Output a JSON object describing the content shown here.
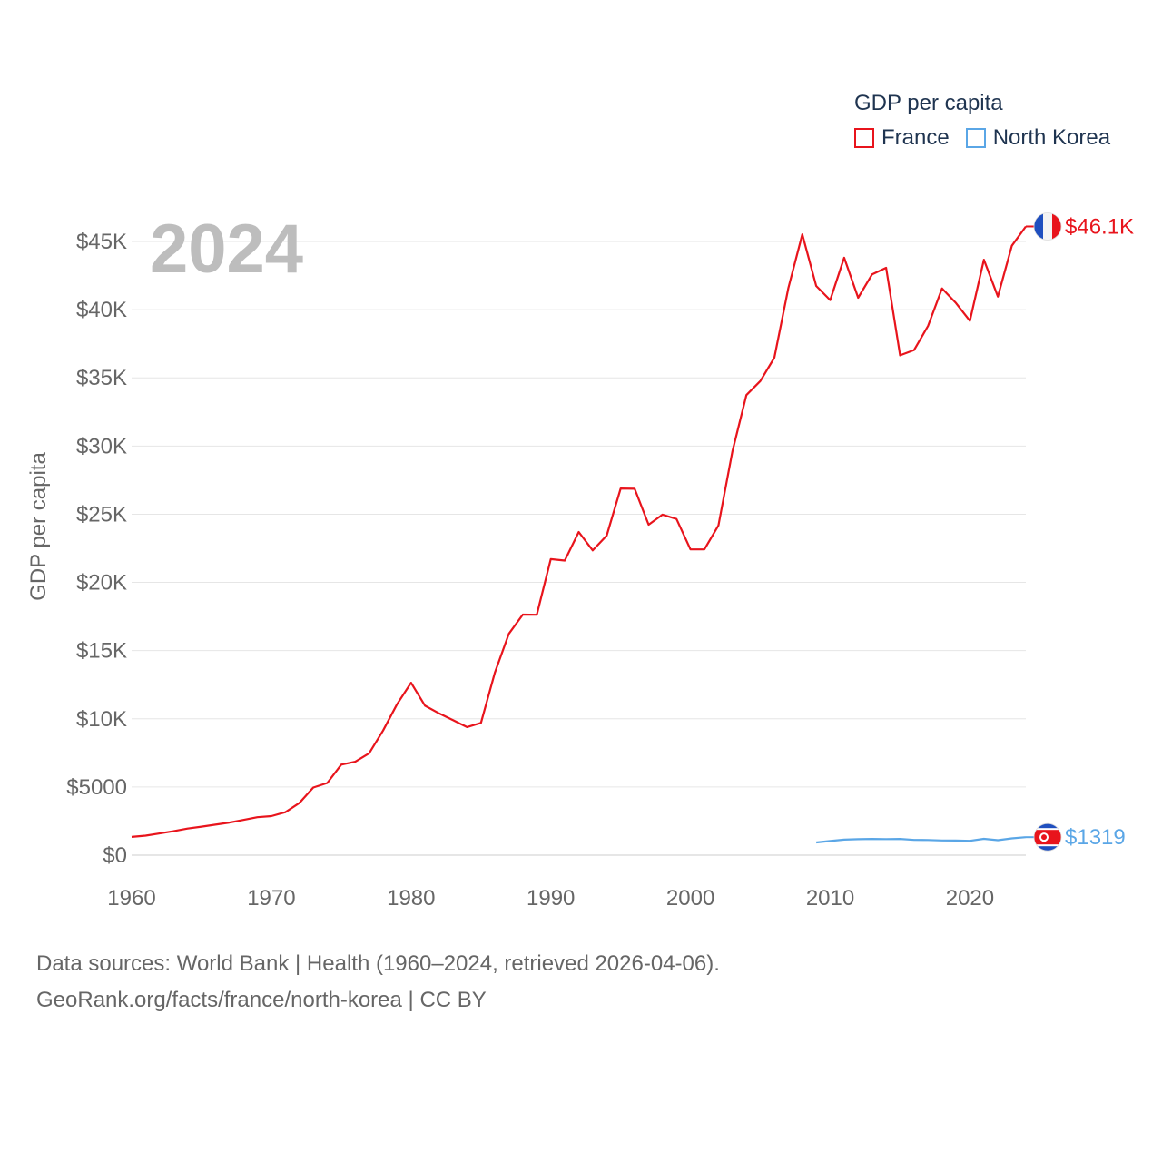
{
  "legend": {
    "title": "GDP per capita",
    "items": [
      {
        "name": "France",
        "color": "#e8141c"
      },
      {
        "name": "North Korea",
        "color": "#5aa6e6"
      }
    ]
  },
  "year_label": "2024",
  "sources": {
    "line1": "Data sources: World Bank | Health (1960–2024, retrieved 2026-04-06).",
    "line2": "GeoRank.org/facts/france/north-korea | CC BY"
  },
  "chart_data": {
    "type": "line",
    "title": "GDP per capita",
    "xlabel": "",
    "ylabel": "GDP per capita",
    "xlim": [
      1960,
      2024
    ],
    "ylim": [
      0,
      45000
    ],
    "x_ticks": [
      1960,
      1970,
      1980,
      1990,
      2000,
      2010,
      2020
    ],
    "y_ticks": [
      {
        "value": 0,
        "label": "$0"
      },
      {
        "value": 5000,
        "label": "$5000"
      },
      {
        "value": 10000,
        "label": "$10K"
      },
      {
        "value": 15000,
        "label": "$15K"
      },
      {
        "value": 20000,
        "label": "$20K"
      },
      {
        "value": 25000,
        "label": "$25K"
      },
      {
        "value": 30000,
        "label": "$30K"
      },
      {
        "value": 35000,
        "label": "$35K"
      },
      {
        "value": 40000,
        "label": "$40K"
      },
      {
        "value": 45000,
        "label": "$45K"
      }
    ],
    "grid": true,
    "legend_position": "top-right",
    "series": [
      {
        "name": "France",
        "color": "#e8141c",
        "end_label": "$46.1K",
        "flag": "france-flag-icon",
        "x": [
          1960,
          1961,
          1962,
          1963,
          1964,
          1965,
          1966,
          1967,
          1968,
          1969,
          1970,
          1971,
          1972,
          1973,
          1974,
          1975,
          1976,
          1977,
          1978,
          1979,
          1980,
          1981,
          1982,
          1983,
          1984,
          1985,
          1986,
          1987,
          1988,
          1989,
          1990,
          1991,
          1992,
          1993,
          1994,
          1995,
          1996,
          1997,
          1998,
          1999,
          2000,
          2001,
          2002,
          2003,
          2004,
          2005,
          2006,
          2007,
          2008,
          2009,
          2010,
          2011,
          2012,
          2013,
          2014,
          2015,
          2016,
          2017,
          2018,
          2019,
          2020,
          2021,
          2022,
          2023,
          2024
        ],
        "values": [
          1340,
          1430,
          1590,
          1760,
          1950,
          2090,
          2240,
          2390,
          2580,
          2780,
          2860,
          3150,
          3820,
          4960,
          5290,
          6640,
          6850,
          7470,
          9140,
          11070,
          12640,
          10960,
          10400,
          9900,
          9390,
          9700,
          13400,
          16230,
          17640,
          17630,
          21710,
          21600,
          23700,
          22350,
          23430,
          26890,
          26870,
          24230,
          24970,
          24650,
          22420,
          22430,
          24180,
          29610,
          33740,
          34770,
          36480,
          41580,
          45520,
          41740,
          40700,
          43810,
          40870,
          42590,
          43070,
          36650,
          37040,
          38810,
          41560,
          40490,
          39180,
          43660,
          40960,
          44690,
          46100
        ]
      },
      {
        "name": "North Korea",
        "color": "#5aa6e6",
        "end_label": "$1319",
        "flag": "north-korea-flag-icon",
        "x": [
          2009,
          2010,
          2011,
          2012,
          2013,
          2014,
          2015,
          2016,
          2017,
          2018,
          2019,
          2020,
          2021,
          2022,
          2023,
          2024
        ],
        "values": [
          930,
          1040,
          1140,
          1170,
          1190,
          1180,
          1190,
          1120,
          1110,
          1080,
          1070,
          1050,
          1200,
          1100,
          1230,
          1319
        ]
      }
    ]
  }
}
